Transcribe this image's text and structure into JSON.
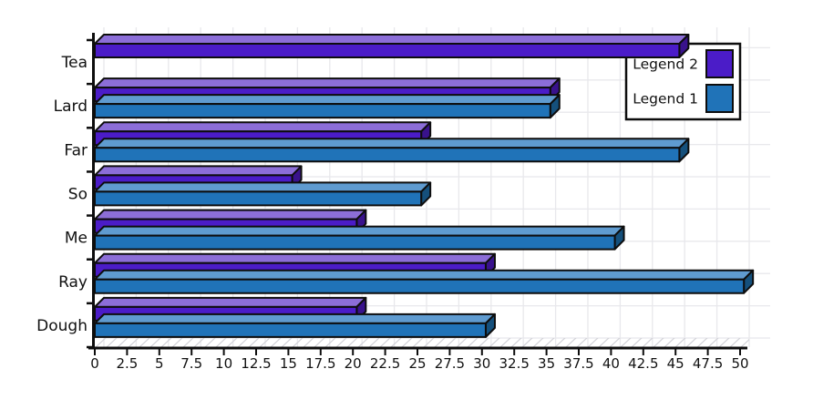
{
  "chart_data": {
    "type": "bar",
    "orientation": "horizontal",
    "style": "pseudo-3d",
    "title": "",
    "xlabel": "",
    "ylabel": "",
    "xlim": [
      0,
      50
    ],
    "grid": true,
    "background_color": "#ffffff",
    "outline_color": "#0d0d0d",
    "categories_top_to_bottom": [
      "Tea",
      "Lard",
      "Far",
      "So",
      "Me",
      "Ray",
      "Dough"
    ],
    "x_tick_labels": [
      "0",
      "2.5",
      "5",
      "7.5",
      "10",
      "12.5",
      "15",
      "17.5",
      "20",
      "22.5",
      "25",
      "27.5",
      "30",
      "32.5",
      "35",
      "37.5",
      "40",
      "42.5",
      "45",
      "47.5",
      "50"
    ],
    "legend": {
      "position": "top-right",
      "entries_top_to_bottom": [
        "Legend 2",
        "Legend 1"
      ]
    },
    "series": [
      {
        "name": "Legend 2",
        "color": "#4b1cc8",
        "top_face_color": "#8c6ed8",
        "end_face_color": "#39128c",
        "values": [
          46,
          36,
          26,
          16,
          21,
          31,
          21
        ]
      },
      {
        "name": "Legend 1",
        "color": "#2073b8",
        "top_face_color": "#5f9bd0",
        "end_face_color": "#15507c",
        "values": [
          null,
          36,
          46,
          26,
          41,
          51,
          31
        ]
      }
    ]
  }
}
